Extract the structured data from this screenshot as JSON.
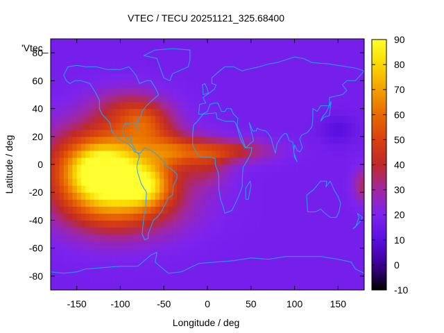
{
  "chart_data": {
    "type": "heatmap",
    "title": "VTEC / TECU 20251121_325.68400",
    "xlabel": "Longitude / deg",
    "ylabel": "Latitude / deg",
    "series_key": "'Vtec_",
    "xlim": [
      -180,
      180
    ],
    "ylim": [
      -90,
      90
    ],
    "x_ticks": [
      -150,
      -100,
      -50,
      0,
      50,
      100,
      150
    ],
    "y_ticks": [
      -80,
      -60,
      -40,
      -20,
      0,
      20,
      40,
      60,
      80
    ],
    "colorbar": {
      "range": [
        -10,
        90
      ],
      "ticks": [
        -10,
        0,
        10,
        20,
        30,
        40,
        50,
        60,
        70,
        80,
        90
      ]
    },
    "background_tecu": 18,
    "regions": [
      {
        "lon": -110,
        "lat": 0,
        "lon_radius": 70,
        "lat_radius": 28,
        "peak_tecu": 42
      },
      {
        "lon": -120,
        "lat": -10,
        "lon_radius": 55,
        "lat_radius": 30,
        "peak_tecu": 30
      },
      {
        "lon": -95,
        "lat": -30,
        "lon_radius": 70,
        "lat_radius": 22,
        "peak_tecu": 24
      },
      {
        "lon": -125,
        "lat": -5,
        "lon_radius": 30,
        "lat_radius": 15,
        "peak_tecu": 20
      },
      {
        "lon": -70,
        "lat": -15,
        "lon_radius": 28,
        "lat_radius": 14,
        "peak_tecu": 28
      },
      {
        "lon": -40,
        "lat": 10,
        "lon_radius": 30,
        "lat_radius": 12,
        "peak_tecu": 22
      },
      {
        "lon": -70,
        "lat": 30,
        "lon_radius": 30,
        "lat_radius": 15,
        "peak_tecu": 22
      },
      {
        "lon": -95,
        "lat": 40,
        "lon_radius": 40,
        "lat_radius": 15,
        "peak_tecu": 15
      },
      {
        "lon": 20,
        "lat": 10,
        "lon_radius": 50,
        "lat_radius": 8,
        "peak_tecu": 25
      },
      {
        "lon": 0,
        "lat": 0,
        "lon_radius": 25,
        "lat_radius": 15,
        "peak_tecu": 15
      },
      {
        "lon": 180,
        "lat": -15,
        "lon_radius": 12,
        "lat_radius": 12,
        "peak_tecu": 18
      },
      {
        "lon": 150,
        "lat": 25,
        "lon_radius": 20,
        "lat_radius": 10,
        "peak_tecu": -8
      }
    ],
    "coastlines": [
      {
        "name": "north-america",
        "lonlat": [
          [
            -165,
            64
          ],
          [
            -160,
            70
          ],
          [
            -150,
            71
          ],
          [
            -140,
            70
          ],
          [
            -128,
            70
          ],
          [
            -115,
            68
          ],
          [
            -100,
            68
          ],
          [
            -90,
            70
          ],
          [
            -82,
            64
          ],
          [
            -78,
            58
          ],
          [
            -70,
            60
          ],
          [
            -65,
            60
          ],
          [
            -60,
            55
          ],
          [
            -56,
            50
          ],
          [
            -65,
            45
          ],
          [
            -70,
            42
          ],
          [
            -75,
            38
          ],
          [
            -76,
            35
          ],
          [
            -80,
            32
          ],
          [
            -81,
            27
          ],
          [
            -80,
            25
          ],
          [
            -82,
            28
          ],
          [
            -84,
            30
          ],
          [
            -90,
            29
          ],
          [
            -95,
            29
          ],
          [
            -97,
            26
          ],
          [
            -97,
            22
          ],
          [
            -92,
            18
          ],
          [
            -87,
            21
          ],
          [
            -88,
            16
          ],
          [
            -84,
            12
          ],
          [
            -82,
            9
          ],
          [
            -80,
            8
          ],
          [
            -78,
            8
          ],
          [
            -84,
            9
          ],
          [
            -86,
            12
          ],
          [
            -92,
            15
          ],
          [
            -96,
            16
          ],
          [
            -105,
            20
          ],
          [
            -110,
            24
          ],
          [
            -112,
            30
          ],
          [
            -115,
            32
          ],
          [
            -118,
            34
          ],
          [
            -121,
            36
          ],
          [
            -124,
            40
          ],
          [
            -124,
            46
          ],
          [
            -128,
            51
          ],
          [
            -135,
            58
          ],
          [
            -145,
            60
          ],
          [
            -152,
            60
          ],
          [
            -158,
            58
          ],
          [
            -162,
            60
          ],
          [
            -165,
            64
          ]
        ]
      },
      {
        "name": "south-america",
        "lonlat": [
          [
            -80,
            8
          ],
          [
            -77,
            8
          ],
          [
            -72,
            12
          ],
          [
            -65,
            10
          ],
          [
            -60,
            8
          ],
          [
            -55,
            5
          ],
          [
            -50,
            2
          ],
          [
            -48,
            -1
          ],
          [
            -42,
            -3
          ],
          [
            -35,
            -7
          ],
          [
            -35,
            -10
          ],
          [
            -39,
            -15
          ],
          [
            -40,
            -22
          ],
          [
            -45,
            -24
          ],
          [
            -48,
            -28
          ],
          [
            -53,
            -34
          ],
          [
            -58,
            -38
          ],
          [
            -62,
            -40
          ],
          [
            -65,
            -45
          ],
          [
            -68,
            -50
          ],
          [
            -68,
            -53
          ],
          [
            -72,
            -54
          ],
          [
            -75,
            -50
          ],
          [
            -74,
            -44
          ],
          [
            -73,
            -38
          ],
          [
            -71,
            -30
          ],
          [
            -70,
            -20
          ],
          [
            -76,
            -14
          ],
          [
            -80,
            -6
          ],
          [
            -81,
            -2
          ],
          [
            -80,
            2
          ],
          [
            -78,
            6
          ],
          [
            -80,
            8
          ]
        ]
      },
      {
        "name": "africa",
        "lonlat": [
          [
            -17,
            21
          ],
          [
            -16,
            28
          ],
          [
            -10,
            32
          ],
          [
            -5,
            36
          ],
          [
            10,
            37
          ],
          [
            11,
            33
          ],
          [
            20,
            31
          ],
          [
            30,
            31
          ],
          [
            32,
            30
          ],
          [
            34,
            27
          ],
          [
            38,
            18
          ],
          [
            43,
            12
          ],
          [
            51,
            12
          ],
          [
            50,
            8
          ],
          [
            45,
            2
          ],
          [
            41,
            -2
          ],
          [
            40,
            -10
          ],
          [
            40,
            -16
          ],
          [
            35,
            -24
          ],
          [
            32,
            -28
          ],
          [
            28,
            -33
          ],
          [
            20,
            -35
          ],
          [
            18,
            -30
          ],
          [
            15,
            -25
          ],
          [
            13,
            -17
          ],
          [
            13,
            -8
          ],
          [
            12,
            -5
          ],
          [
            9,
            0
          ],
          [
            9,
            4
          ],
          [
            5,
            5
          ],
          [
            -5,
            5
          ],
          [
            -10,
            6
          ],
          [
            -13,
            9
          ],
          [
            -17,
            14
          ],
          [
            -17,
            21
          ]
        ]
      },
      {
        "name": "eurasia",
        "lonlat": [
          [
            -10,
            36
          ],
          [
            -9,
            43
          ],
          [
            -2,
            44
          ],
          [
            -5,
            48
          ],
          [
            2,
            51
          ],
          [
            8,
            54
          ],
          [
            10,
            57
          ],
          [
            5,
            58
          ],
          [
            5,
            62
          ],
          [
            12,
            66
          ],
          [
            20,
            70
          ],
          [
            30,
            70
          ],
          [
            40,
            67
          ],
          [
            45,
            68
          ],
          [
            60,
            70
          ],
          [
            70,
            72
          ],
          [
            80,
            73
          ],
          [
            100,
            77
          ],
          [
            110,
            76
          ],
          [
            120,
            73
          ],
          [
            140,
            72
          ],
          [
            160,
            70
          ],
          [
            170,
            69
          ],
          [
            180,
            67
          ],
          [
            170,
            60
          ],
          [
            160,
            60
          ],
          [
            155,
            57
          ],
          [
            160,
            53
          ],
          [
            155,
            50
          ],
          [
            140,
            48
          ],
          [
            140,
            42
          ],
          [
            130,
            42
          ],
          [
            126,
            38
          ],
          [
            121,
            40
          ],
          [
            121,
            32
          ],
          [
            120,
            27
          ],
          [
            115,
            23
          ],
          [
            108,
            21
          ],
          [
            106,
            18
          ],
          [
            109,
            12
          ],
          [
            106,
            9
          ],
          [
            103,
            10
          ],
          [
            100,
            14
          ],
          [
            99,
            9
          ],
          [
            103,
            2
          ],
          [
            100,
            5
          ],
          [
            98,
            16
          ],
          [
            94,
            17
          ],
          [
            91,
            22
          ],
          [
            88,
            22
          ],
          [
            85,
            20
          ],
          [
            80,
            15
          ],
          [
            78,
            8
          ],
          [
            76,
            12
          ],
          [
            73,
            19
          ],
          [
            70,
            22
          ],
          [
            67,
            24
          ],
          [
            60,
            25
          ],
          [
            57,
            26
          ],
          [
            56,
            24
          ],
          [
            52,
            24
          ],
          [
            50,
            27
          ],
          [
            48,
            30
          ],
          [
            53,
            17
          ],
          [
            44,
            12
          ],
          [
            42,
            15
          ],
          [
            38,
            22
          ],
          [
            34,
            28
          ],
          [
            35,
            33
          ],
          [
            30,
            36
          ],
          [
            27,
            40
          ],
          [
            22,
            40
          ],
          [
            20,
            38
          ],
          [
            16,
            38
          ],
          [
            12,
            44
          ],
          [
            8,
            44
          ],
          [
            3,
            43
          ],
          [
            0,
            38
          ],
          [
            -6,
            36
          ],
          [
            -10,
            36
          ]
        ]
      },
      {
        "name": "australia",
        "lonlat": [
          [
            114,
            -22
          ],
          [
            122,
            -18
          ],
          [
            130,
            -12
          ],
          [
            137,
            -12
          ],
          [
            136,
            -16
          ],
          [
            141,
            -12
          ],
          [
            146,
            -19
          ],
          [
            150,
            -23
          ],
          [
            153,
            -28
          ],
          [
            151,
            -34
          ],
          [
            148,
            -38
          ],
          [
            141,
            -38
          ],
          [
            135,
            -35
          ],
          [
            130,
            -32
          ],
          [
            124,
            -34
          ],
          [
            115,
            -34
          ],
          [
            114,
            -22
          ]
        ]
      },
      {
        "name": "greenland",
        "lonlat": [
          [
            -73,
            78
          ],
          [
            -60,
            82
          ],
          [
            -40,
            83
          ],
          [
            -20,
            82
          ],
          [
            -20,
            75
          ],
          [
            -22,
            70
          ],
          [
            -40,
            65
          ],
          [
            -43,
            60
          ],
          [
            -50,
            62
          ],
          [
            -53,
            67
          ],
          [
            -58,
            76
          ],
          [
            -73,
            78
          ]
        ]
      },
      {
        "name": "uk",
        "lonlat": [
          [
            -5,
            50
          ],
          [
            1,
            51
          ],
          [
            0,
            54
          ],
          [
            -3,
            58
          ],
          [
            -6,
            57
          ],
          [
            -5,
            54
          ],
          [
            -5,
            50
          ]
        ]
      },
      {
        "name": "japan",
        "lonlat": [
          [
            130,
            31
          ],
          [
            134,
            34
          ],
          [
            140,
            35
          ],
          [
            141,
            40
          ],
          [
            142,
            45
          ],
          [
            140,
            42
          ],
          [
            136,
            37
          ],
          [
            132,
            34
          ],
          [
            130,
            31
          ]
        ]
      },
      {
        "name": "madagascar",
        "lonlat": [
          [
            44,
            -25
          ],
          [
            47,
            -25
          ],
          [
            50,
            -15
          ],
          [
            49,
            -12
          ],
          [
            44,
            -17
          ],
          [
            44,
            -25
          ]
        ]
      },
      {
        "name": "new-zealand",
        "lonlat": [
          [
            172,
            -35
          ],
          [
            178,
            -38
          ],
          [
            175,
            -41
          ],
          [
            171,
            -44
          ],
          [
            167,
            -46
          ],
          [
            170,
            -45
          ],
          [
            174,
            -38
          ],
          [
            172,
            -35
          ]
        ]
      },
      {
        "name": "antarctica",
        "lonlat": [
          [
            -180,
            -85
          ],
          [
            -180,
            -77
          ],
          [
            -165,
            -78
          ],
          [
            -150,
            -77
          ],
          [
            -140,
            -75
          ],
          [
            -120,
            -74
          ],
          [
            -100,
            -73
          ],
          [
            -80,
            -73
          ],
          [
            -65,
            -65
          ],
          [
            -58,
            -63
          ],
          [
            -60,
            -70
          ],
          [
            -45,
            -78
          ],
          [
            -30,
            -77
          ],
          [
            -10,
            -71
          ],
          [
            10,
            -70
          ],
          [
            30,
            -69
          ],
          [
            50,
            -67
          ],
          [
            70,
            -68
          ],
          [
            90,
            -66
          ],
          [
            110,
            -66
          ],
          [
            130,
            -66
          ],
          [
            150,
            -68
          ],
          [
            165,
            -70
          ],
          [
            170,
            -75
          ],
          [
            180,
            -78
          ],
          [
            180,
            -85
          ]
        ]
      }
    ]
  }
}
